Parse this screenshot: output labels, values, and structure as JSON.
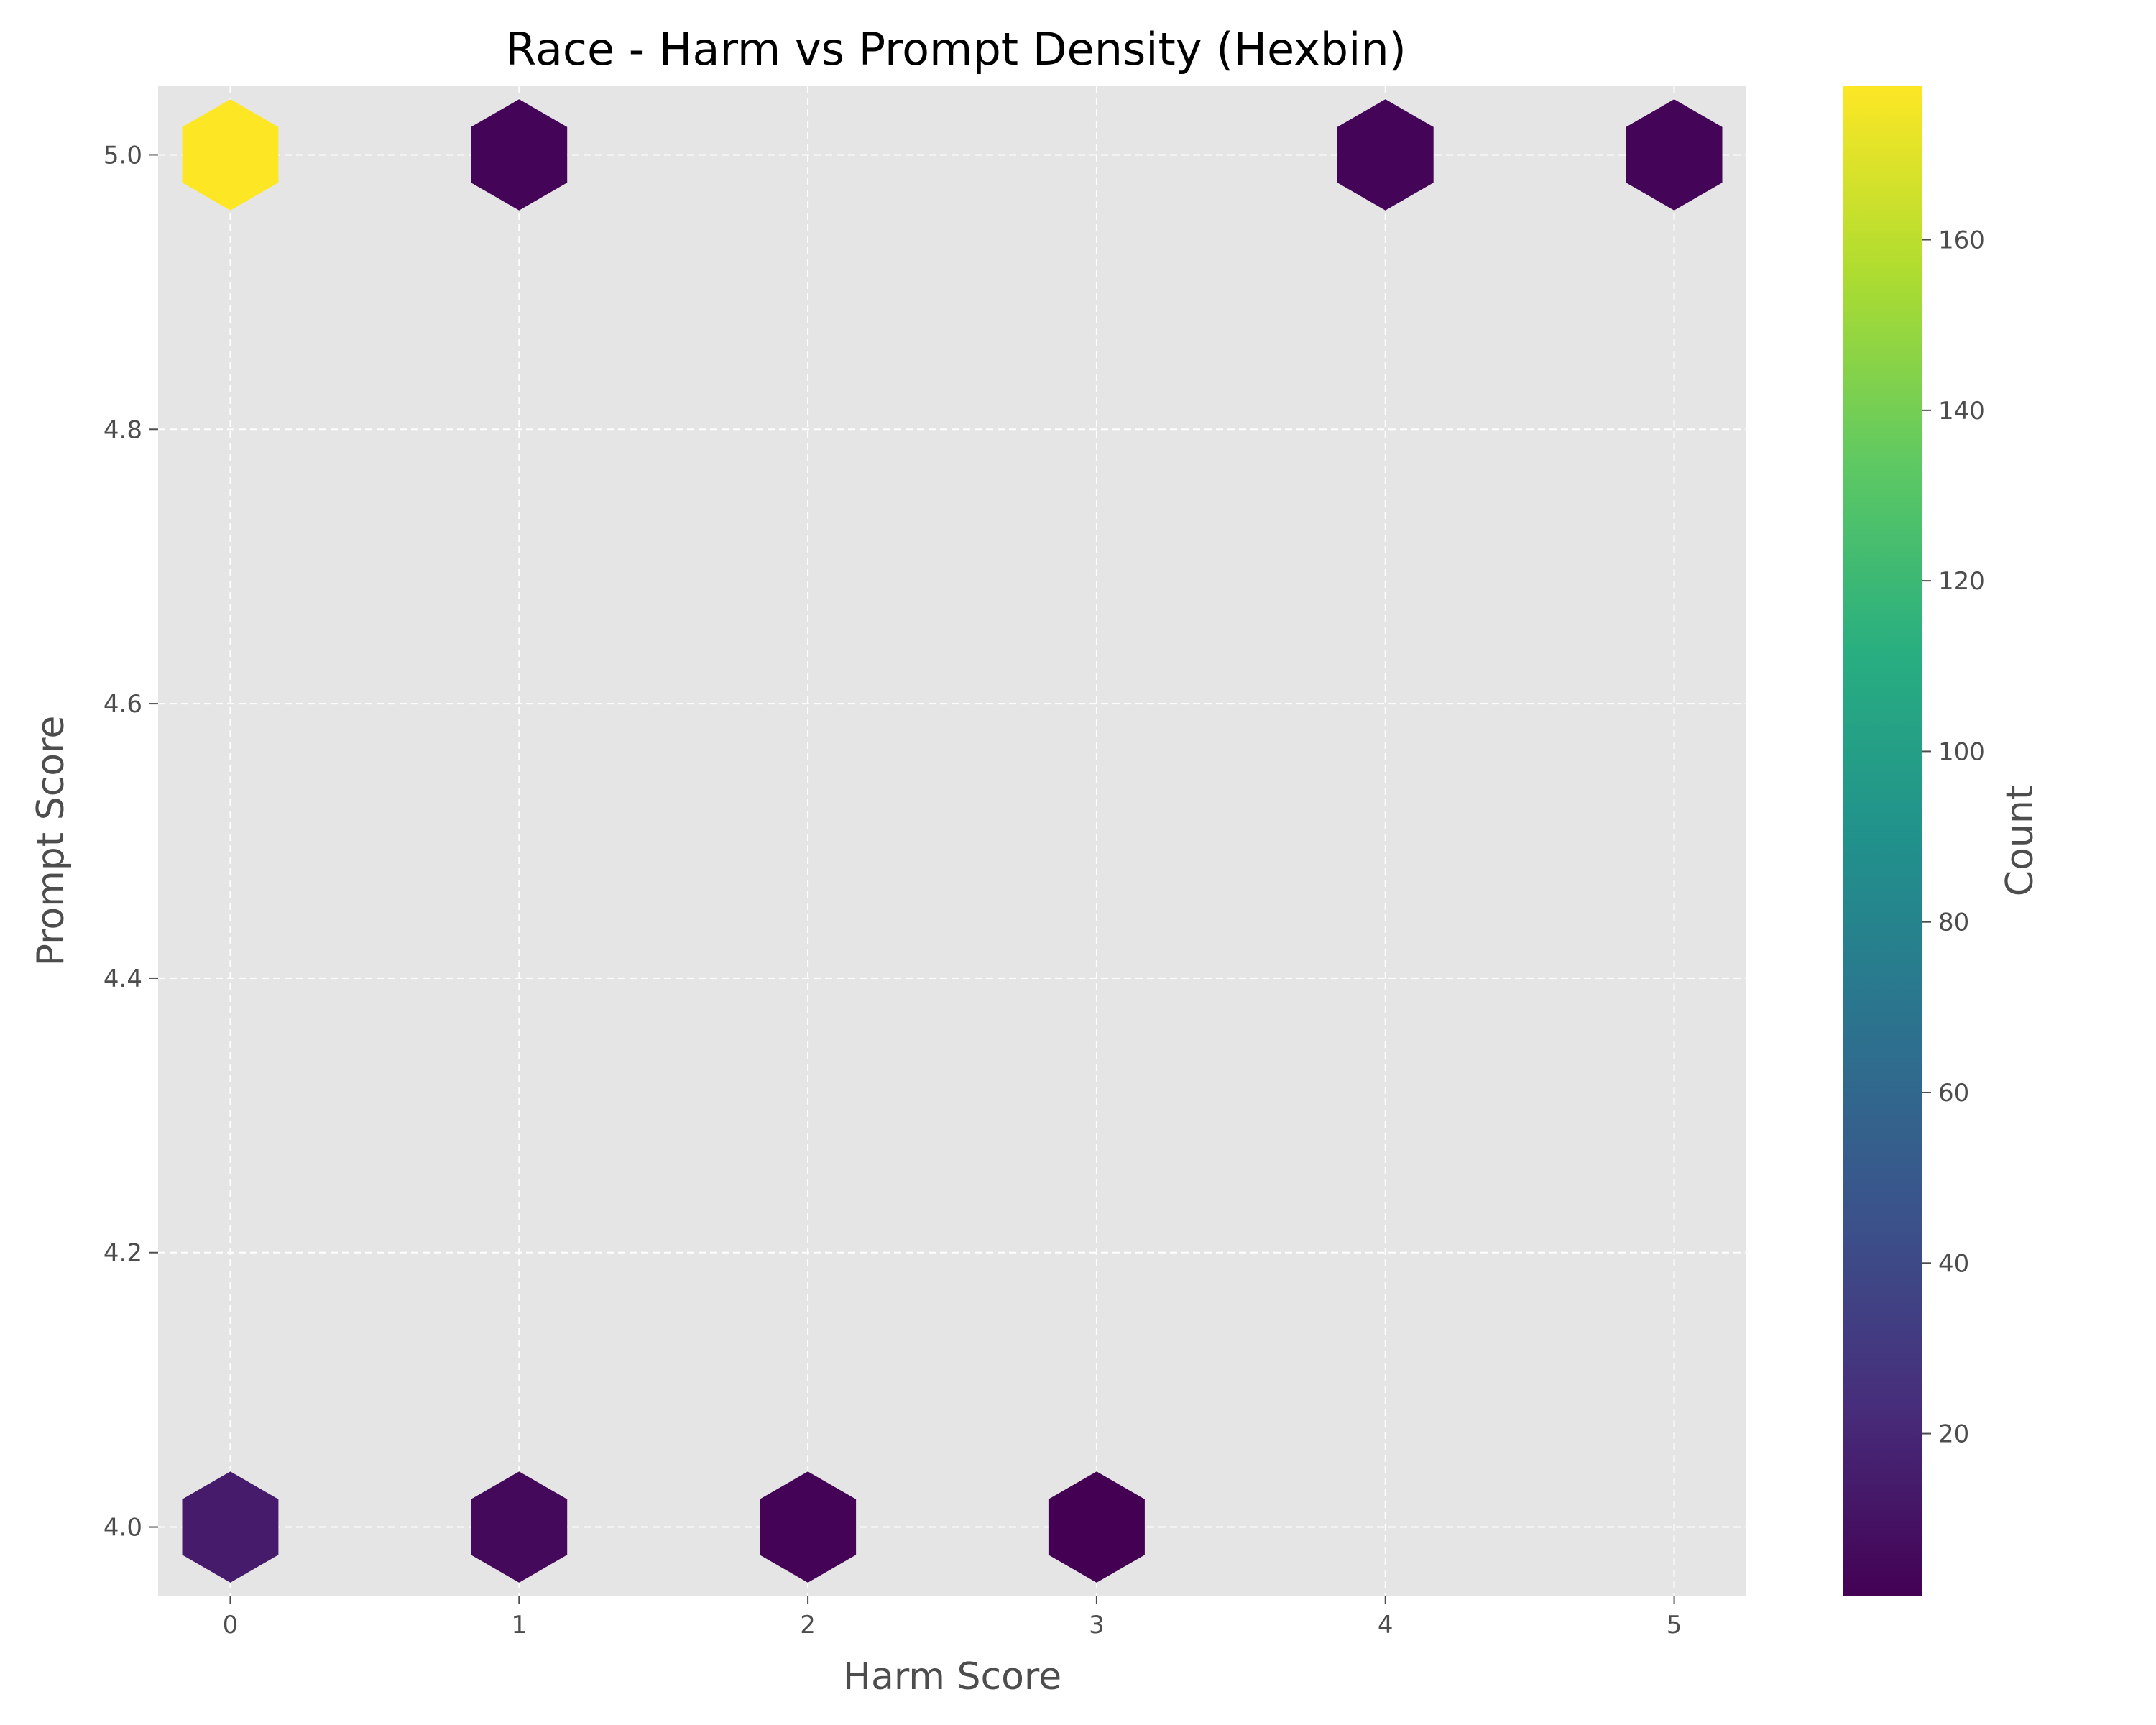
{
  "chart_data": {
    "type": "heatmap",
    "subtype": "hexbin",
    "title": "Race - Harm vs Prompt Density (Hexbin)",
    "xlabel": "Harm Score",
    "ylabel": "Prompt Score",
    "xlim": [
      -0.25,
      5.25
    ],
    "ylim": [
      3.95,
      5.05
    ],
    "x_ticks": [
      "0",
      "1",
      "2",
      "3",
      "4",
      "5"
    ],
    "y_ticks": [
      "4.0",
      "4.2",
      "4.4",
      "4.6",
      "4.8",
      "5.0"
    ],
    "grid": true,
    "colormap": "viridis",
    "colorbar": {
      "label": "Count",
      "range": [
        1,
        178
      ],
      "ticks": [
        "20",
        "40",
        "60",
        "80",
        "100",
        "120",
        "140",
        "160"
      ]
    },
    "bins": [
      {
        "x": 0,
        "y": 5.0,
        "count": 178
      },
      {
        "x": 1,
        "y": 5.0,
        "count": 3
      },
      {
        "x": 4,
        "y": 5.0,
        "count": 3
      },
      {
        "x": 5,
        "y": 5.0,
        "count": 3
      },
      {
        "x": 0,
        "y": 4.0,
        "count": 14
      },
      {
        "x": 1,
        "y": 4.0,
        "count": 5
      },
      {
        "x": 2,
        "y": 4.0,
        "count": 2
      },
      {
        "x": 3,
        "y": 4.0,
        "count": 1
      }
    ]
  },
  "colors": {
    "plot_background": "#e5e5e5",
    "grid": "#ffffff",
    "text": "#4d4d4d"
  }
}
